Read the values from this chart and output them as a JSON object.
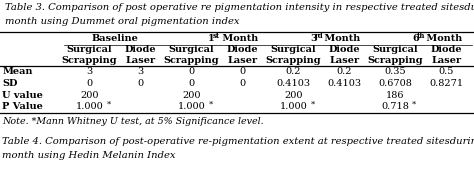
{
  "title_line1": "Table 3. Comparison of post operative re pigmentation intensity in respective treated sitesduring 1st, 3rd and 6th",
  "title_line2": "month using Dummet oral pigmentation index",
  "footer": "Note. *Mann Whitney U test, at 5% Significance level.",
  "table4_line1": "Table 4. Comparison of post-operative re-pigmentation extent at respective treated sitesduring 1st, 3rd and 6th",
  "table4_line2": "month using Hedin Melanin Index",
  "col_groups": [
    "Baseline",
    "1st Month",
    "3rd Month",
    "6th Month"
  ],
  "col_sub": [
    "Surgical\nScrapping",
    "Diode\nLaser",
    "Surgical\nScrapping",
    "Diode\nLaser",
    "Surgical\nScrapping",
    "Diode\nLaser",
    "Surgical\nScrapping",
    "Diode\nLaser"
  ],
  "row_labels": [
    "Mean",
    "SD",
    "U value",
    "P Value"
  ],
  "rows": [
    [
      "3",
      "3",
      "0",
      "0",
      "0.2",
      "0.2",
      "0.35",
      "0.5"
    ],
    [
      "0",
      "0",
      "0",
      "0",
      "0.4103",
      "0.4103",
      "0.6708",
      "0.8271"
    ],
    [
      "200",
      "",
      "200",
      "",
      "200",
      "",
      "186",
      ""
    ],
    [
      "1.000*",
      "",
      "1.000*",
      "",
      "1.000*",
      "",
      "0.718*",
      ""
    ]
  ],
  "bg_color": "#ffffff",
  "text_color": "#000000",
  "title_fontsize": 7.2,
  "header_fontsize": 7.0,
  "cell_fontsize": 7.0,
  "note_fontsize": 6.8
}
